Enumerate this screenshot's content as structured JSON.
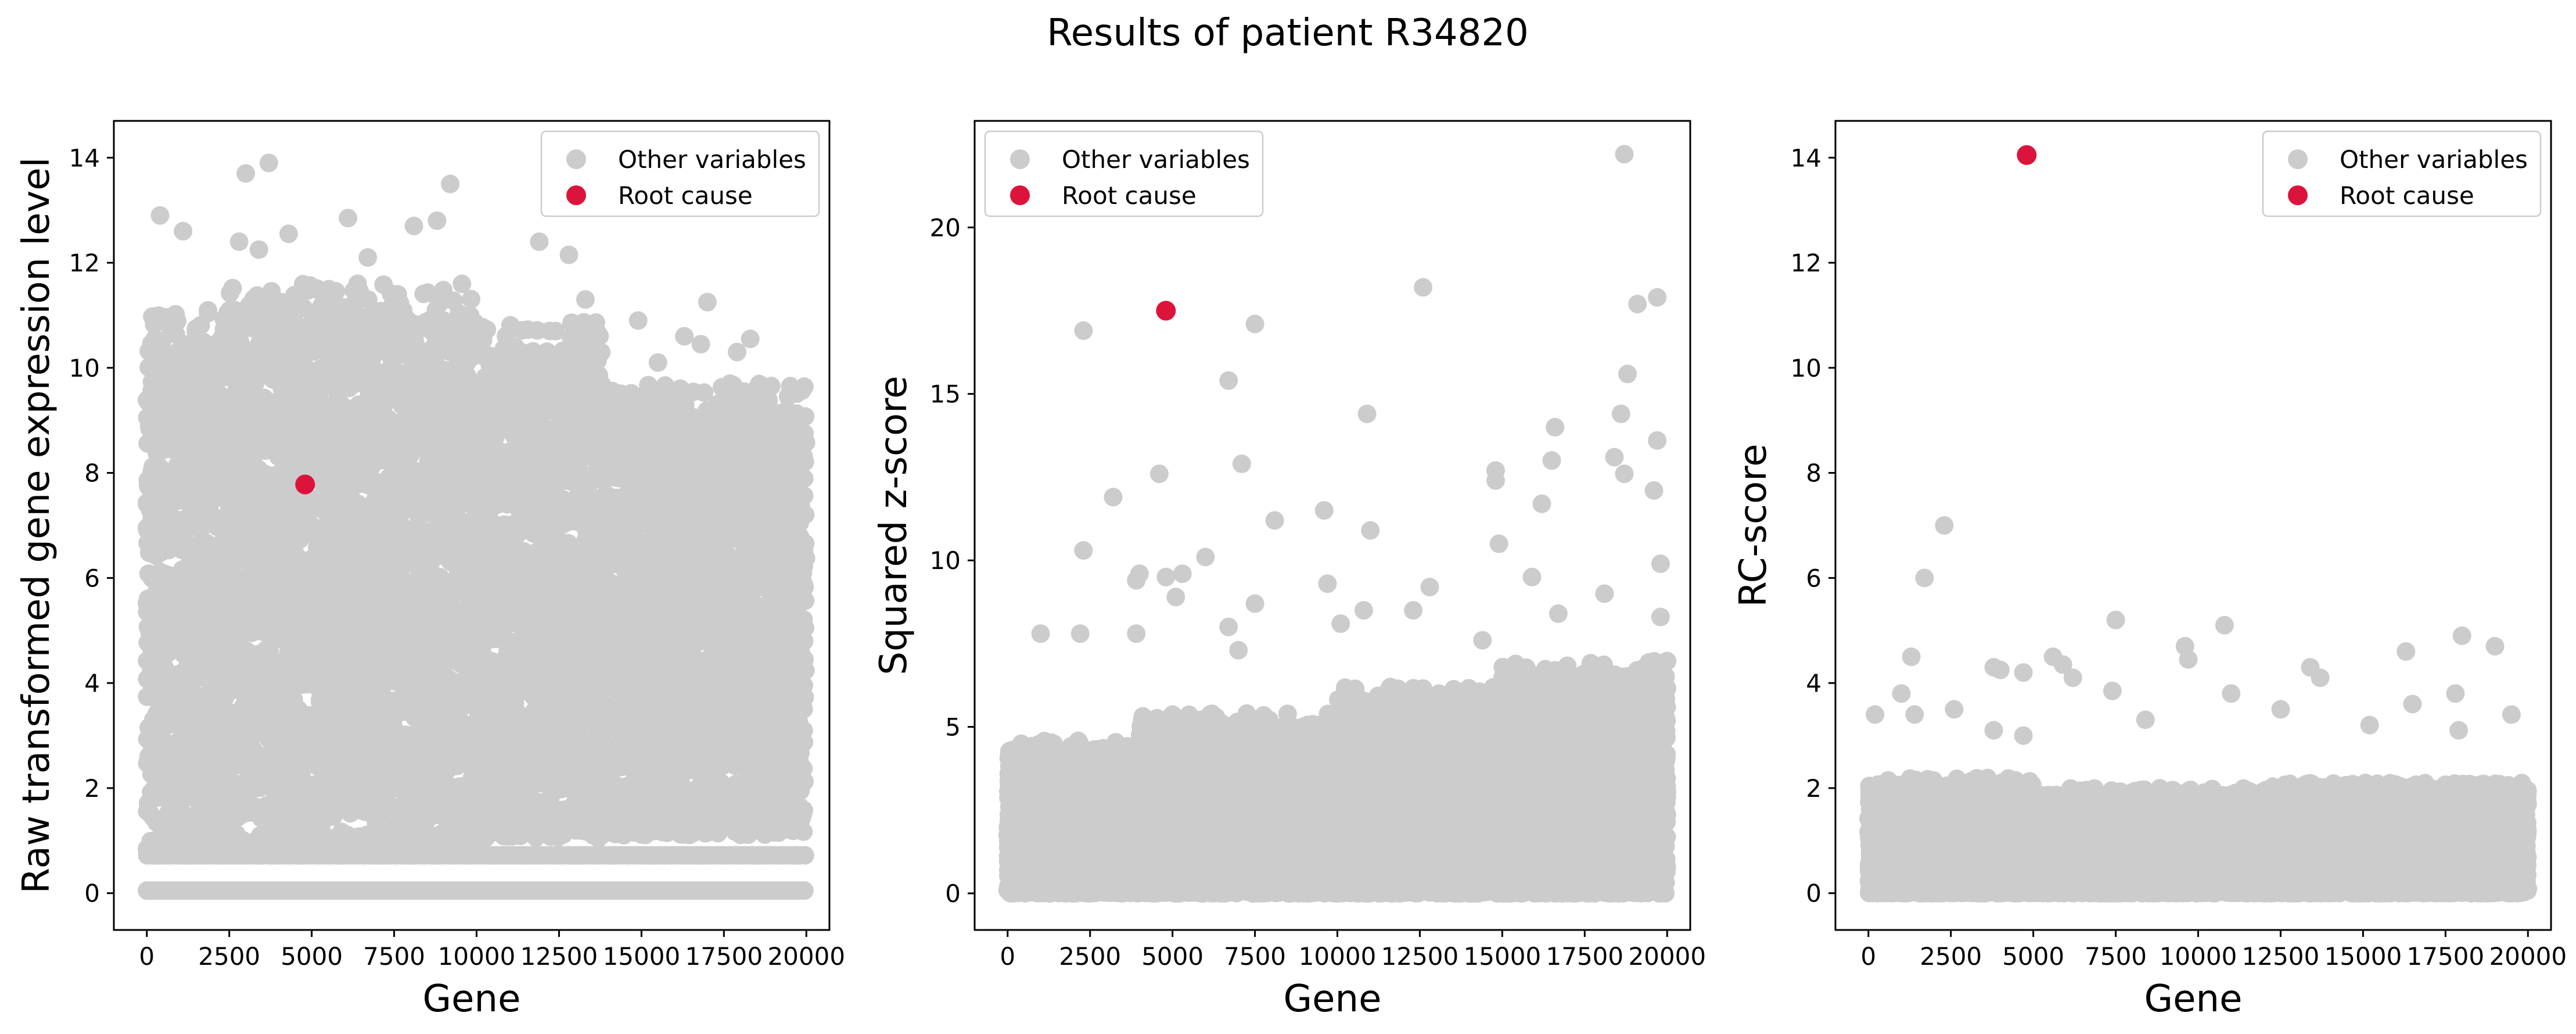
{
  "figure": {
    "title": "Results of patient R34820"
  },
  "colors": {
    "other": "#cccccc",
    "root": "#dc143c",
    "legend_frame": "#cccccc"
  },
  "legend_labels": {
    "other": "Other variables",
    "root": "Root cause"
  },
  "chart_data": [
    {
      "type": "scatter",
      "title": "",
      "xlabel": "Gene",
      "ylabel": "Raw transformed gene expression level",
      "xlim": [
        -1000,
        20700
      ],
      "ylim": [
        -0.7,
        14.7
      ],
      "xticks": [
        0,
        2500,
        5000,
        7500,
        10000,
        12500,
        15000,
        17500,
        20000
      ],
      "yticks": [
        0,
        2,
        4,
        6,
        8,
        10,
        12,
        14
      ],
      "legend": "top-right",
      "n_genes": 20000,
      "root_cause": {
        "gene": 4800,
        "value": 7.78
      },
      "notable_points": [
        [
          3700,
          13.9
        ],
        [
          3000,
          13.7
        ],
        [
          9200,
          13.5
        ],
        [
          400,
          12.9
        ],
        [
          6100,
          12.85
        ],
        [
          8800,
          12.8
        ],
        [
          8100,
          12.7
        ],
        [
          1100,
          12.6
        ],
        [
          4300,
          12.55
        ],
        [
          2800,
          12.4
        ],
        [
          11900,
          12.4
        ],
        [
          12800,
          12.15
        ],
        [
          3400,
          12.25
        ],
        [
          6700,
          12.1
        ],
        [
          17000,
          11.25
        ],
        [
          13300,
          11.3
        ],
        [
          14900,
          10.9
        ],
        [
          18300,
          10.55
        ],
        [
          16800,
          10.45
        ],
        [
          17900,
          10.3
        ],
        [
          16300,
          10.6
        ],
        [
          12400,
          10.7
        ],
        [
          15500,
          10.1
        ]
      ],
      "bands": [
        {
          "from": 0,
          "to": 2500,
          "min": 0.75,
          "max": 11.1
        },
        {
          "from": 2500,
          "to": 10000,
          "min": 0.9,
          "max": 11.6
        },
        {
          "from": 10000,
          "to": 13800,
          "min": 1.0,
          "max": 10.9
        },
        {
          "from": 13800,
          "to": 20000,
          "min": 1.1,
          "max": 9.7
        }
      ],
      "baseline_rows": [
        0.05,
        0.72
      ]
    },
    {
      "type": "scatter",
      "title": "",
      "xlabel": "Gene",
      "ylabel": "Squared z-score",
      "xlim": [
        -1000,
        20700
      ],
      "ylim": [
        -1.1,
        23.2
      ],
      "xticks": [
        0,
        2500,
        5000,
        7500,
        10000,
        12500,
        15000,
        17500,
        20000
      ],
      "yticks": [
        0,
        5,
        10,
        15,
        20
      ],
      "legend": "top-left",
      "n_genes": 20000,
      "root_cause": {
        "gene": 4800,
        "value": 17.5
      },
      "notable_points": [
        [
          18700,
          22.2
        ],
        [
          12600,
          18.2
        ],
        [
          19700,
          17.9
        ],
        [
          19100,
          17.7
        ],
        [
          7500,
          17.1
        ],
        [
          2300,
          16.9
        ],
        [
          18800,
          15.6
        ],
        [
          6700,
          15.4
        ],
        [
          18600,
          14.4
        ],
        [
          10900,
          14.4
        ],
        [
          16600,
          14.0
        ],
        [
          19700,
          13.6
        ],
        [
          18400,
          13.1
        ],
        [
          16500,
          13.0
        ],
        [
          7100,
          12.9
        ],
        [
          14800,
          12.7
        ],
        [
          14800,
          12.4
        ],
        [
          18700,
          12.6
        ],
        [
          4600,
          12.6
        ],
        [
          19600,
          12.1
        ],
        [
          3200,
          11.9
        ],
        [
          16200,
          11.7
        ],
        [
          9600,
          11.5
        ],
        [
          8100,
          11.2
        ],
        [
          11000,
          10.9
        ],
        [
          14900,
          10.5
        ],
        [
          2300,
          10.3
        ],
        [
          6000,
          10.1
        ],
        [
          19800,
          9.9
        ],
        [
          4000,
          9.6
        ],
        [
          5300,
          9.6
        ],
        [
          9700,
          9.3
        ],
        [
          3900,
          9.4
        ],
        [
          4800,
          9.5
        ],
        [
          15900,
          9.5
        ],
        [
          18100,
          9.0
        ],
        [
          12800,
          9.2
        ],
        [
          5100,
          8.9
        ],
        [
          10800,
          8.5
        ],
        [
          16700,
          8.4
        ],
        [
          7500,
          8.7
        ],
        [
          19800,
          8.3
        ],
        [
          10100,
          8.1
        ],
        [
          6700,
          8.0
        ],
        [
          12300,
          8.5
        ],
        [
          1000,
          7.8
        ],
        [
          2200,
          7.8
        ],
        [
          3900,
          7.8
        ],
        [
          14400,
          7.6
        ],
        [
          7000,
          7.3
        ]
      ],
      "bands": [
        {
          "from": 0,
          "to": 4000,
          "min": 0.0,
          "max": 4.6
        },
        {
          "from": 4000,
          "to": 10000,
          "min": 0.0,
          "max": 5.4
        },
        {
          "from": 10000,
          "to": 15000,
          "min": 0.0,
          "max": 6.2
        },
        {
          "from": 15000,
          "to": 20000,
          "min": 0.0,
          "max": 7.0
        }
      ],
      "baseline_rows": []
    },
    {
      "type": "scatter",
      "title": "",
      "xlabel": "Gene",
      "ylabel": "RC-score",
      "xlim": [
        -1000,
        20700
      ],
      "ylim": [
        -0.7,
        14.7
      ],
      "xticks": [
        0,
        2500,
        5000,
        7500,
        10000,
        12500,
        15000,
        17500,
        20000
      ],
      "yticks": [
        0,
        2,
        4,
        6,
        8,
        10,
        12,
        14
      ],
      "legend": "top-right",
      "n_genes": 20000,
      "root_cause": {
        "gene": 4800,
        "value": 14.05
      },
      "notable_points": [
        [
          2300,
          7.0
        ],
        [
          1700,
          6.0
        ],
        [
          7500,
          5.2
        ],
        [
          10800,
          5.1
        ],
        [
          18000,
          4.9
        ],
        [
          9600,
          4.7
        ],
        [
          19000,
          4.7
        ],
        [
          16300,
          4.6
        ],
        [
          1300,
          4.5
        ],
        [
          5600,
          4.5
        ],
        [
          9700,
          4.45
        ],
        [
          5900,
          4.35
        ],
        [
          3800,
          4.3
        ],
        [
          4000,
          4.25
        ],
        [
          13400,
          4.3
        ],
        [
          4700,
          4.2
        ],
        [
          6200,
          4.1
        ],
        [
          13700,
          4.1
        ],
        [
          1000,
          3.8
        ],
        [
          7400,
          3.85
        ],
        [
          11000,
          3.8
        ],
        [
          17800,
          3.8
        ],
        [
          16500,
          3.6
        ],
        [
          12500,
          3.5
        ],
        [
          19500,
          3.4
        ],
        [
          200,
          3.4
        ],
        [
          1400,
          3.4
        ],
        [
          2600,
          3.5
        ],
        [
          4700,
          3.0
        ],
        [
          15200,
          3.2
        ],
        [
          8400,
          3.3
        ],
        [
          17900,
          3.1
        ],
        [
          3800,
          3.1
        ]
      ],
      "bands": [
        {
          "from": 0,
          "to": 5000,
          "min": 0.0,
          "max": 2.2
        },
        {
          "from": 5000,
          "to": 12000,
          "min": 0.0,
          "max": 2.0
        },
        {
          "from": 12000,
          "to": 20000,
          "min": 0.0,
          "max": 2.1
        }
      ],
      "baseline_rows": []
    }
  ]
}
